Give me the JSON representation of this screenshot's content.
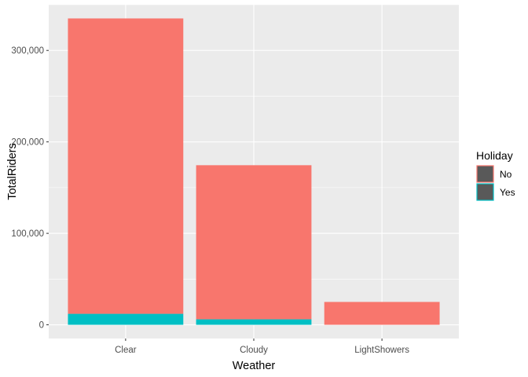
{
  "chart_data": {
    "type": "bar",
    "stacked": true,
    "xlabel": "Weather",
    "ylabel": "TotalRiders",
    "categories": [
      "Clear",
      "Cloudy",
      "LightShowers"
    ],
    "yticks": [
      0,
      100000,
      200000,
      300000
    ],
    "ytick_labels": [
      "0",
      "100,000",
      "200,000",
      "300,000"
    ],
    "ylim": [
      -15000,
      350000
    ],
    "grid": true,
    "legend": {
      "title": "Holiday",
      "position": "right",
      "entries": [
        "No",
        "Yes"
      ]
    },
    "series": [
      {
        "name": "Yes",
        "color": "#00BFC4",
        "values": [
          12000,
          6000,
          0
        ]
      },
      {
        "name": "No",
        "color": "#F8766D",
        "values": [
          323000,
          168500,
          25000
        ]
      }
    ],
    "colors": {
      "panel": "#EBEBEB",
      "grid_major": "#FFFFFF",
      "legend_key_fill": "#595959"
    }
  }
}
